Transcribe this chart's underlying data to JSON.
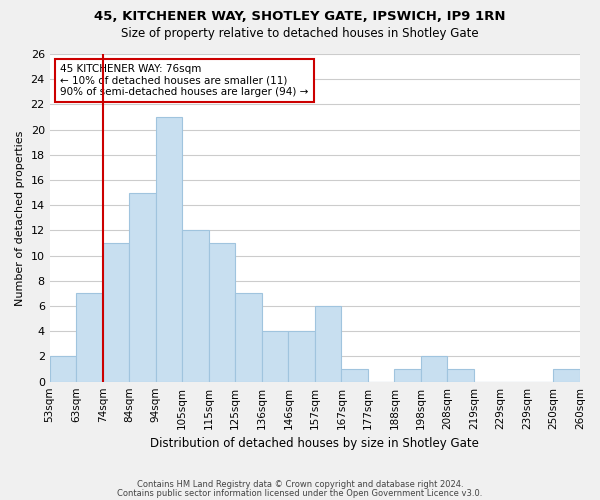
{
  "title": "45, KITCHENER WAY, SHOTLEY GATE, IPSWICH, IP9 1RN",
  "subtitle": "Size of property relative to detached houses in Shotley Gate",
  "xlabel": "Distribution of detached houses by size in Shotley Gate",
  "ylabel": "Number of detached properties",
  "footer_line1": "Contains HM Land Registry data © Crown copyright and database right 2024.",
  "footer_line2": "Contains public sector information licensed under the Open Government Licence v3.0.",
  "tick_labels": [
    "53sqm",
    "63sqm",
    "74sqm",
    "84sqm",
    "94sqm",
    "105sqm",
    "115sqm",
    "125sqm",
    "136sqm",
    "146sqm",
    "157sqm",
    "167sqm",
    "177sqm",
    "188sqm",
    "198sqm",
    "208sqm",
    "219sqm",
    "229sqm",
    "239sqm",
    "250sqm",
    "260sqm"
  ],
  "counts": [
    2,
    7,
    11,
    15,
    21,
    12,
    11,
    7,
    4,
    4,
    6,
    1,
    0,
    1,
    2,
    1,
    0,
    0,
    0,
    1
  ],
  "bar_color": "#c8dff0",
  "bar_edge_color": "#a0c4de",
  "vline_color": "#cc0000",
  "vline_pos": 2,
  "annotation_title": "45 KITCHENER WAY: 76sqm",
  "annotation_line1": "← 10% of detached houses are smaller (11)",
  "annotation_line2": "90% of semi-detached houses are larger (94) →",
  "ylim": [
    0,
    26
  ],
  "yticks": [
    0,
    2,
    4,
    6,
    8,
    10,
    12,
    14,
    16,
    18,
    20,
    22,
    24,
    26
  ],
  "background_color": "#f0f0f0",
  "plot_bg_color": "#ffffff",
  "grid_color": "#cccccc"
}
